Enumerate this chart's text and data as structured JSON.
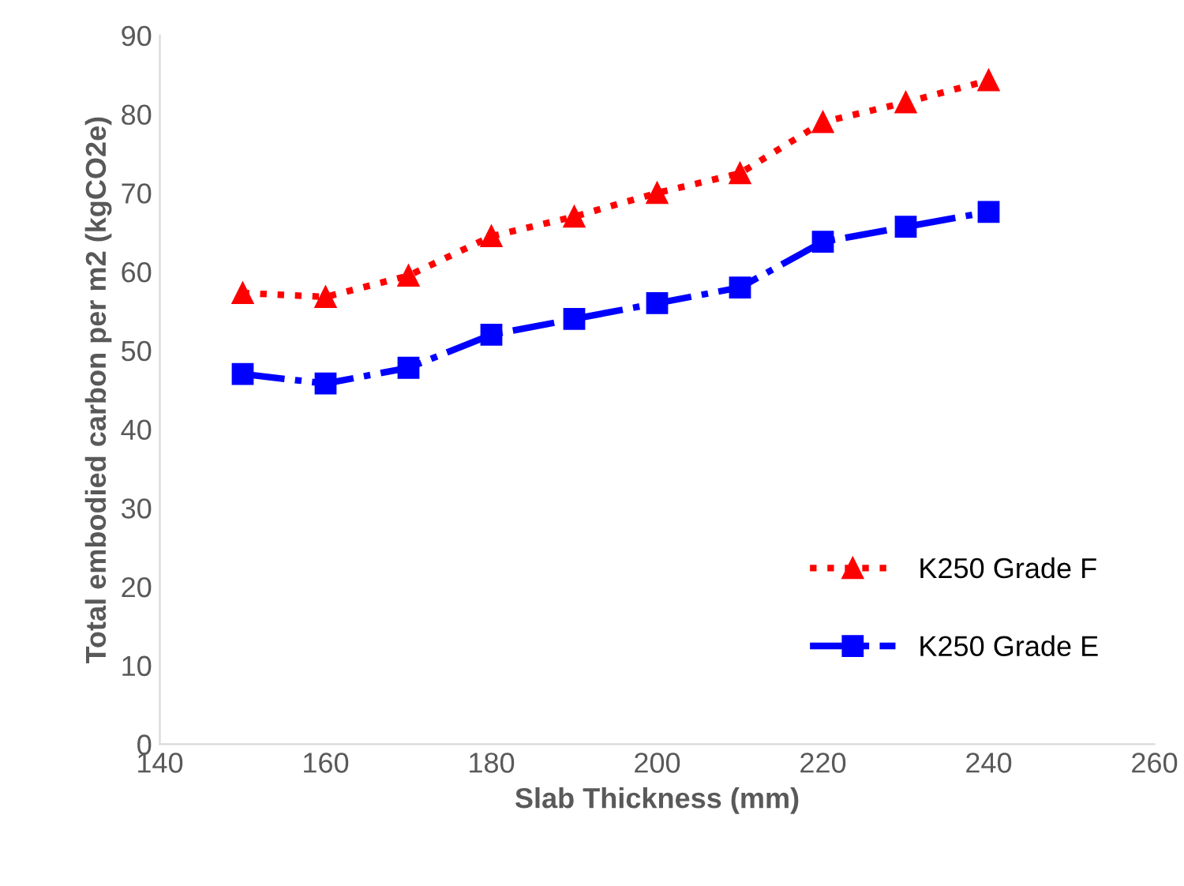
{
  "chart_data": {
    "type": "line",
    "xlabel": "Slab Thickness (mm)",
    "ylabel": "Total embodied carbon per m2 (kgCO2e)",
    "x": [
      150,
      160,
      170,
      180,
      190,
      200,
      210,
      220,
      230,
      240
    ],
    "series": [
      {
        "name": "K250 Grade F",
        "color": "#ff0000",
        "marker": "triangle",
        "line_style": "dotted",
        "values": [
          57.3,
          56.8,
          59.5,
          64.5,
          67,
          70,
          72.5,
          79,
          81.5,
          84.3
        ]
      },
      {
        "name": "K250 Grade E",
        "color": "#0000ff",
        "marker": "square",
        "line_style": "dashdot",
        "values": [
          47,
          45.8,
          47.8,
          52,
          54,
          56,
          58,
          63.8,
          65.7,
          67.6
        ]
      }
    ],
    "xlim": [
      140,
      260
    ],
    "xticks": [
      140,
      160,
      180,
      200,
      220,
      240,
      260
    ],
    "ylim": [
      0,
      90
    ],
    "yticks": [
      0,
      10,
      20,
      30,
      40,
      50,
      60,
      70,
      80,
      90
    ],
    "grid": false,
    "legend": "bottom right"
  }
}
